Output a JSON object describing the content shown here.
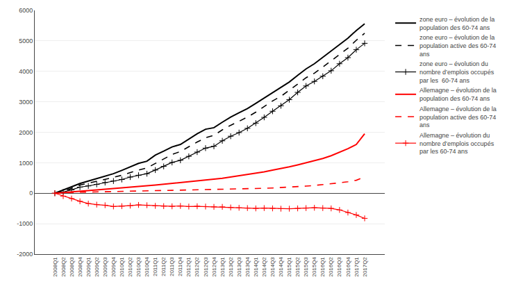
{
  "chart_data": {
    "type": "line",
    "categories": [
      "2008Q1",
      "2008Q2",
      "2008Q3",
      "2008Q4",
      "2009Q1",
      "2009Q2",
      "2009Q3",
      "2009Q4",
      "2010Q1",
      "2010Q2",
      "2010Q3",
      "2010Q4",
      "2011Q1",
      "2011Q2",
      "2011Q3",
      "2011Q4",
      "2012Q1",
      "2012Q2",
      "2012Q3",
      "2012Q4",
      "2013Q1",
      "2013Q2",
      "2013Q3",
      "2013Q4",
      "2014Q1",
      "2014Q2",
      "2014Q3",
      "2014Q4",
      "2015Q1",
      "2015Q2",
      "2015Q3",
      "2015Q4",
      "2016Q1",
      "2016Q2",
      "2016Q3",
      "2016Q4",
      "2017Q1",
      "2017Q2"
    ],
    "series": [
      {
        "name": "zone euro – évolution de la\npopulation des 60-74 ans",
        "color": "black",
        "line_style": "solid",
        "values": [
          0,
          100,
          210,
          320,
          400,
          480,
          570,
          640,
          750,
          870,
          980,
          1050,
          1250,
          1380,
          1520,
          1600,
          1780,
          1950,
          2100,
          2150,
          2330,
          2500,
          2640,
          2780,
          2950,
          3120,
          3310,
          3460,
          3650,
          3870,
          4080,
          4250,
          4460,
          4660,
          4880,
          5090,
          5340,
          5560
        ]
      },
      {
        "name": "zone euro – évolution de la\npopulation active des 60-74\nans",
        "color": "black",
        "line_style": "dashed",
        "values": [
          0,
          70,
          160,
          270,
          330,
          390,
          460,
          520,
          590,
          680,
          760,
          830,
          980,
          1120,
          1270,
          1370,
          1530,
          1680,
          1820,
          1900,
          2080,
          2230,
          2360,
          2500,
          2660,
          2840,
          3030,
          3180,
          3370,
          3580,
          3790,
          3940,
          4140,
          4340,
          4560,
          4760,
          5020,
          5250
        ]
      },
      {
        "name": "zone euro – évolution du\nnombre d’emplois occupés\npar les  60-74 ans",
        "color": "black",
        "line_style": "solid",
        "marker": "plus",
        "values": [
          0,
          40,
          110,
          200,
          240,
          290,
          350,
          400,
          450,
          530,
          590,
          640,
          760,
          880,
          1010,
          1080,
          1210,
          1350,
          1480,
          1540,
          1720,
          1870,
          1990,
          2130,
          2300,
          2490,
          2690,
          2870,
          3070,
          3310,
          3520,
          3670,
          3840,
          4020,
          4250,
          4450,
          4710,
          4920
        ]
      },
      {
        "name": "Allemagne – évolution de la\npopulation des 60-74 ans",
        "color": "red",
        "line_style": "solid",
        "values": [
          0,
          25,
          50,
          70,
          85,
          110,
          130,
          150,
          175,
          200,
          220,
          245,
          270,
          295,
          320,
          345,
          370,
          400,
          430,
          460,
          490,
          530,
          570,
          615,
          655,
          700,
          760,
          810,
          865,
          930,
          1000,
          1070,
          1140,
          1230,
          1340,
          1460,
          1600,
          1950
        ]
      },
      {
        "name": "Allemagne – évolution de la\npopulation active des 60-74\nans",
        "color": "red",
        "line_style": "dashed",
        "values": [
          0,
          15,
          25,
          35,
          38,
          42,
          46,
          55,
          58,
          62,
          66,
          74,
          82,
          90,
          95,
          100,
          108,
          112,
          116,
          120,
          125,
          135,
          140,
          145,
          155,
          162,
          172,
          185,
          198,
          215,
          233,
          255,
          278,
          308,
          340,
          378,
          425,
          530
        ]
      },
      {
        "name": "Allemagne – évolution du\nnombre d’emplois occupés\npar les 60-74 ans",
        "color": "red",
        "line_style": "solid",
        "marker": "plus",
        "values": [
          0,
          -95,
          -175,
          -265,
          -340,
          -375,
          -395,
          -435,
          -425,
          -408,
          -385,
          -395,
          -415,
          -425,
          -430,
          -418,
          -438,
          -428,
          -438,
          -448,
          -448,
          -468,
          -478,
          -488,
          -498,
          -488,
          -498,
          -508,
          -508,
          -498,
          -488,
          -478,
          -488,
          -498,
          -548,
          -635,
          -715,
          -825
        ]
      }
    ],
    "ylim": [
      -2000,
      6000
    ],
    "yticks": [
      -2000,
      -1000,
      0,
      1000,
      2000,
      3000,
      4000,
      5000,
      6000
    ],
    "grid": true,
    "legend": "right"
  }
}
